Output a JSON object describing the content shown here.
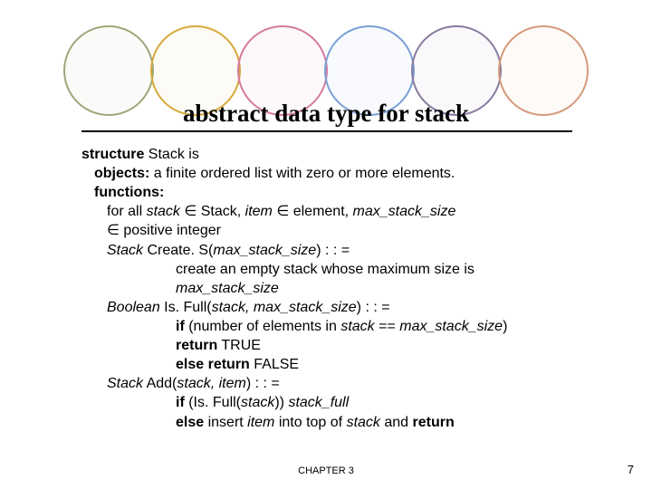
{
  "title": "abstract data type for stack",
  "circles": {
    "colors": [
      "#9aa87a",
      "#d6a93a",
      "#d67aa0",
      "#7aa0d6",
      "#8a7aa0",
      "#d69a7a"
    ]
  },
  "lines": {
    "l1a": "structure",
    "l1b": " Stack is",
    "l2a": "objects:",
    "l2b": " a finite ordered list with zero or more elements.",
    "l3": "functions:",
    "l4a": "for all ",
    "l4b": "stack",
    "l4c": " ∈ Stack, ",
    "l4d": "item",
    "l4e": " ∈ element, ",
    "l4f": "max_stack_size",
    "l5": "∈ positive integer",
    "l6a": "Stack",
    "l6b": " Create. S(",
    "l6c": "max_stack_size",
    "l6d": ") : : =",
    "l7a": "create an empty stack whose maximum size is",
    "l7b": "max_stack_size",
    "l8a": "Boolean",
    "l8b": " Is. Full(",
    "l8c": "stack, max_stack_size",
    "l8d": ") : : =",
    "l9a": "if",
    "l9b": " (number of elements in ",
    "l9c": "stack",
    "l9d": " == ",
    "l9e": "max_stack_size",
    "l9f": ")",
    "l10a": "return",
    "l10b": " TRUE",
    "l11a": "else return",
    "l11b": " FALSE",
    "l12a": "Stack",
    "l12b": " Add(",
    "l12c": "stack, item",
    "l12d": ") : : =",
    "l13a": "if",
    "l13b": " (Is. Full(",
    "l13c": "stack",
    "l13d": ")) ",
    "l13e": "stack_full",
    "l14a": "else",
    "l14b": " insert ",
    "l14c": "item",
    "l14d": " into top of ",
    "l14e": "stack",
    "l14f": " and ",
    "l14g": "return"
  },
  "footer": {
    "chapter": "CHAPTER 3",
    "page": "7"
  }
}
